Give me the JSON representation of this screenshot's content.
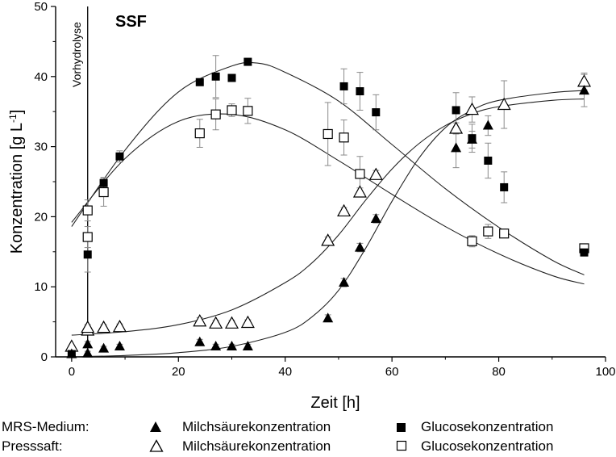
{
  "chart_data": {
    "type": "scatter",
    "annotations": {
      "title": "SSF",
      "vertical_line_label": "Vorhydrolyse",
      "vertical_line_x": 3
    },
    "xlabel": "Zeit [h]",
    "ylabel": "Konzentration [g L",
    "ylabel_sup": "-1",
    "ylabel_end": "]",
    "xlim": [
      -3,
      100
    ],
    "ylim": [
      0,
      50
    ],
    "xticks": [
      0,
      20,
      40,
      60,
      80,
      100
    ],
    "yticks": [
      0,
      10,
      20,
      30,
      40,
      50
    ],
    "series": [
      {
        "name": "Milchsäurekonzentration",
        "medium": "MRS-Medium",
        "marker": "filled-triangle",
        "points": [
          [
            0,
            0.4
          ],
          [
            3,
            0.5
          ],
          [
            3,
            1.8
          ],
          [
            6,
            1.2
          ],
          [
            9,
            1.5
          ],
          [
            24,
            2.1
          ],
          [
            27,
            1.5
          ],
          [
            30,
            1.5
          ],
          [
            33,
            1.5
          ],
          [
            48,
            5.5
          ],
          [
            51,
            10.6
          ],
          [
            54,
            15.6
          ],
          [
            57,
            19.7
          ],
          [
            72,
            29.8
          ],
          [
            75,
            31
          ],
          [
            78,
            33
          ],
          [
            96,
            38
          ]
        ],
        "errors": [
          0,
          0.3,
          0.4,
          0.3,
          0.3,
          0.4,
          0.3,
          0.3,
          0.3,
          0.5,
          0.6,
          0.6,
          0.6,
          2.8,
          1.2,
          1.4,
          2.3
        ]
      },
      {
        "name": "Glucosekonzentration",
        "medium": "MRS-Medium",
        "marker": "filled-square",
        "points": [
          [
            0,
            0.4
          ],
          [
            3,
            14.6
          ],
          [
            6,
            24.8
          ],
          [
            9,
            28.6
          ],
          [
            24,
            39.2
          ],
          [
            27,
            40
          ],
          [
            30,
            39.8
          ],
          [
            33,
            42.1
          ],
          [
            51,
            38.6
          ],
          [
            54,
            37.9
          ],
          [
            57,
            34.9
          ],
          [
            72,
            35.2
          ],
          [
            75,
            31.2
          ],
          [
            78,
            28
          ],
          [
            81,
            24.2
          ],
          [
            96,
            14.9
          ]
        ],
        "errors": [
          0,
          2.5,
          0.8,
          0.8,
          0.5,
          3,
          0.5,
          0.5,
          2.5,
          2.7,
          2.5,
          2.5,
          2,
          2.5,
          2.2,
          0.5
        ]
      },
      {
        "name": "Milchsäurekonzentration",
        "medium": "Presssaft",
        "marker": "open-triangle",
        "points": [
          [
            0,
            1.5
          ],
          [
            3,
            3.8
          ],
          [
            3,
            4.2
          ],
          [
            6,
            4.2
          ],
          [
            9,
            4.3
          ],
          [
            24,
            5.1
          ],
          [
            27,
            4.8
          ],
          [
            30,
            4.8
          ],
          [
            33,
            4.9
          ],
          [
            48,
            16.6
          ],
          [
            51,
            20.8
          ],
          [
            54,
            23.5
          ],
          [
            57,
            26
          ],
          [
            72,
            32.6
          ],
          [
            75,
            35.3
          ],
          [
            81,
            36
          ],
          [
            96,
            39.3
          ]
        ],
        "errors": [
          0,
          0.4,
          0.4,
          0.4,
          0.4,
          0.5,
          0.4,
          0.4,
          0.4,
          0.5,
          0.5,
          0.6,
          0.6,
          0.8,
          1.8,
          3.4,
          1.2
        ]
      },
      {
        "name": "Glucosekonzentration",
        "medium": "Presssaft",
        "marker": "open-square",
        "points": [
          [
            3,
            17.1
          ],
          [
            3,
            20.9
          ],
          [
            6,
            23.5
          ],
          [
            24,
            31.9
          ],
          [
            27,
            34.6
          ],
          [
            30,
            35.2
          ],
          [
            33,
            35.1
          ],
          [
            48,
            31.8
          ],
          [
            51,
            31.3
          ],
          [
            54,
            26.1
          ],
          [
            75,
            16.5
          ],
          [
            78,
            17.9
          ],
          [
            81,
            17.6
          ],
          [
            96,
            15.5
          ]
        ],
        "errors": [
          1.5,
          1.5,
          2,
          2,
          2.2,
          0.9,
          1.8,
          4.5,
          2.5,
          2.5,
          0.8,
          1,
          0.6,
          0.5
        ]
      }
    ],
    "fit_curves": [
      {
        "for": "MRS-Medium Glucosekonzentration",
        "points": [
          [
            0,
            18.6
          ],
          [
            10,
            29.5
          ],
          [
            20,
            37.8
          ],
          [
            30,
            41.5
          ],
          [
            35,
            41.9
          ],
          [
            40,
            40.6
          ],
          [
            50,
            36.5
          ],
          [
            60,
            30.3
          ],
          [
            70,
            24
          ],
          [
            80,
            18.5
          ],
          [
            90,
            13.8
          ],
          [
            96,
            11.7
          ]
        ]
      },
      {
        "for": "Presssaft Glucosekonzentration",
        "points": [
          [
            0,
            19.2
          ],
          [
            10,
            28.3
          ],
          [
            20,
            33.6
          ],
          [
            30,
            34.6
          ],
          [
            40,
            32.4
          ],
          [
            50,
            28
          ],
          [
            60,
            23.2
          ],
          [
            70,
            18.6
          ],
          [
            80,
            14.7
          ],
          [
            90,
            11.6
          ],
          [
            96,
            10.4
          ]
        ]
      },
      {
        "for": "Presssaft Milchsäurekonzentration",
        "points": [
          [
            0,
            3.1
          ],
          [
            10,
            3.6
          ],
          [
            20,
            4.6
          ],
          [
            30,
            6.7
          ],
          [
            40,
            10.6
          ],
          [
            45,
            13.4
          ],
          [
            50,
            17.4
          ],
          [
            55,
            22.3
          ],
          [
            60,
            26.8
          ],
          [
            65,
            30.4
          ],
          [
            70,
            33
          ],
          [
            75,
            34.7
          ],
          [
            80,
            35.7
          ],
          [
            90,
            36.6
          ],
          [
            96,
            36.8
          ]
        ]
      },
      {
        "for": "MRS-Medium Milchsäurekonzentration",
        "points": [
          [
            0,
            0
          ],
          [
            10,
            0.2
          ],
          [
            20,
            0.6
          ],
          [
            30,
            1.5
          ],
          [
            40,
            3.5
          ],
          [
            45,
            5.7
          ],
          [
            50,
            9.5
          ],
          [
            55,
            15.4
          ],
          [
            60,
            22.2
          ],
          [
            65,
            28.3
          ],
          [
            70,
            32.7
          ],
          [
            75,
            35.2
          ],
          [
            80,
            36.6
          ],
          [
            90,
            37.7
          ],
          [
            96,
            38
          ]
        ]
      }
    ]
  },
  "legend": {
    "rows": [
      {
        "medium": "MRS-Medium:",
        "lactate": "Milchsäurekonzentration",
        "glucose": "Glucosekonzentration"
      },
      {
        "medium": "Presssaft:",
        "lactate": "Milchsäurekonzentration",
        "glucose": "Glucosekonzentration"
      }
    ]
  }
}
